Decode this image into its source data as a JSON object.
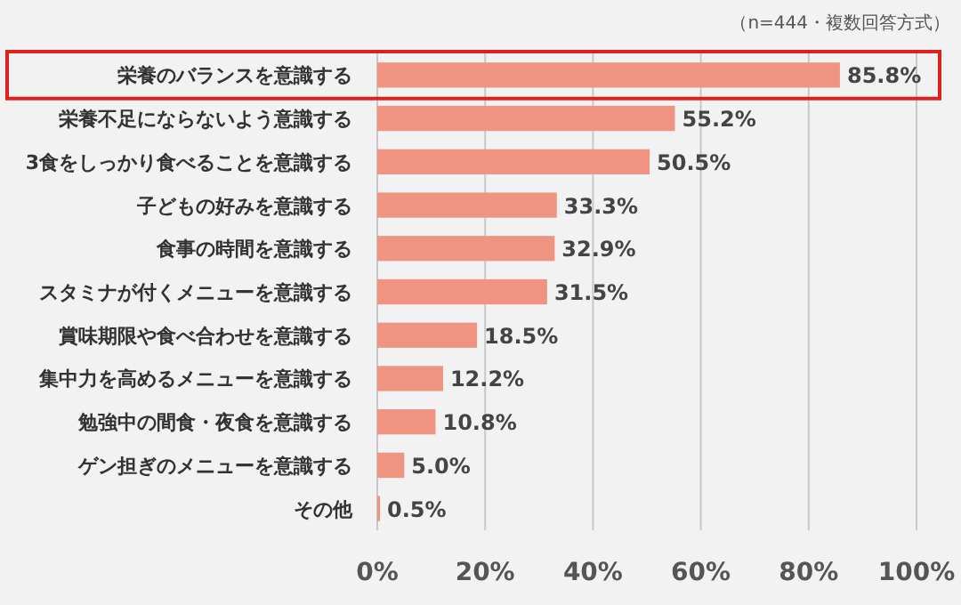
{
  "chart_data": {
    "type": "bar",
    "orientation": "horizontal",
    "annotations": [
      "（n=444・複数回答方式）"
    ],
    "categories": [
      "栄養のバランスを意識する",
      "栄養不足にならないよう意識する",
      "3食をしっかり食べることを意識する",
      "子どもの好みを意識する",
      "食事の時間を意識する",
      "スタミナが付くメニューを意識する",
      "賞味期限や食べ合わせを意識する",
      "集中力を高めるメニューを意識する",
      "勉強中の間食・夜食を意識する",
      "ゲン担ぎのメニューを意識する",
      "その他"
    ],
    "values": [
      85.8,
      55.2,
      50.5,
      33.3,
      32.9,
      31.5,
      18.5,
      12.2,
      10.8,
      5.0,
      0.5
    ],
    "value_labels": [
      "85.8%",
      "55.2%",
      "50.5%",
      "33.3%",
      "32.9%",
      "31.5%",
      "18.5%",
      "12.2%",
      "10.8%",
      "5.0%",
      "0.5%"
    ],
    "color": "#f09482",
    "xlim": [
      0,
      100
    ],
    "xticks": [
      {
        "value": 0,
        "label": "0%"
      },
      {
        "value": 20,
        "label": "20%"
      },
      {
        "value": 40,
        "label": "40%"
      },
      {
        "value": 60,
        "label": "60%"
      },
      {
        "value": 80,
        "label": "80%"
      },
      {
        "value": 100,
        "label": "100%"
      }
    ],
    "grid": "x"
  }
}
